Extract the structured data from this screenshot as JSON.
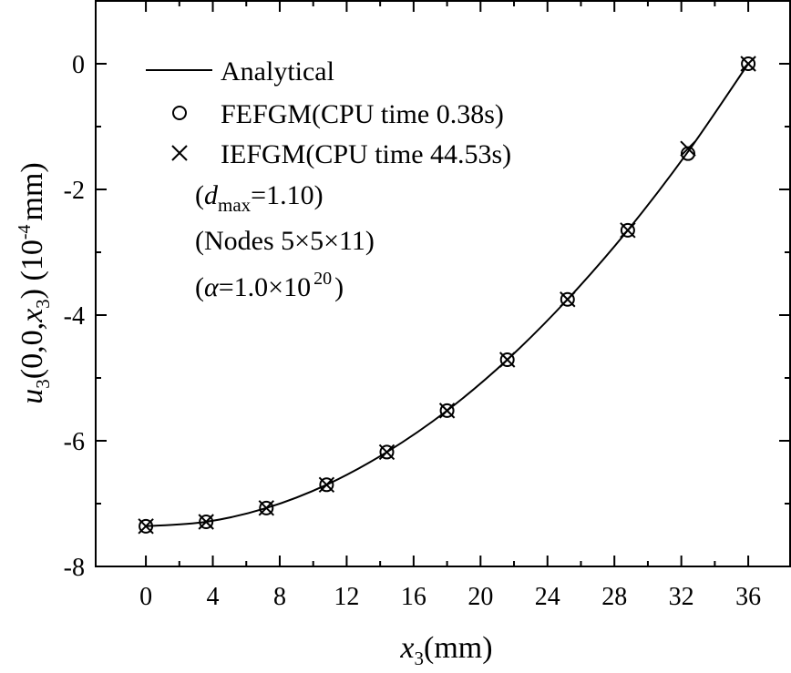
{
  "chart_data": {
    "type": "line",
    "title": "",
    "xlabel": {
      "var": "x",
      "sub": "3",
      "unit": "(mm)"
    },
    "ylabel": {
      "var": "u",
      "sub": "3",
      "arg1": "(0,0,",
      "argvar": "x",
      "argsub": "3",
      "arg2": ") (10",
      "exp": "-4",
      "unit": "mm)"
    },
    "xlim": [
      -3,
      38.5
    ],
    "ylim": [
      -8,
      1
    ],
    "xticks": [
      0,
      4,
      8,
      12,
      16,
      20,
      24,
      28,
      32,
      36
    ],
    "xtick_labels": [
      "0",
      "4",
      "8",
      "12",
      "16",
      "20",
      "24",
      "28",
      "32",
      "36"
    ],
    "yticks": [
      0,
      -2,
      -4,
      -6,
      -8
    ],
    "ytick_labels": [
      "0",
      "-2",
      "-4",
      "-6",
      "-8"
    ],
    "grid": false,
    "legend_position": "top-left",
    "series": [
      {
        "name": "Analytical",
        "style": "line",
        "x": [
          0,
          3.6,
          7.2,
          10.8,
          14.4,
          18,
          21.6,
          25.2,
          28.8,
          32.4,
          36
        ],
        "values": [
          -7.36,
          -7.29,
          -7.07,
          -6.7,
          -6.18,
          -5.52,
          -4.71,
          -3.75,
          -2.65,
          -1.4,
          0.0
        ]
      },
      {
        "name": "FEFGM(CPU time 0.38s)",
        "style": "circle",
        "x": [
          0,
          3.6,
          7.2,
          10.8,
          14.4,
          18,
          21.6,
          25.2,
          28.8,
          32.4,
          36
        ],
        "values": [
          -7.36,
          -7.29,
          -7.07,
          -6.7,
          -6.18,
          -5.52,
          -4.71,
          -3.75,
          -2.65,
          -1.43,
          0.0
        ]
      },
      {
        "name": "IEFGM(CPU time 44.53s)",
        "style": "cross",
        "x": [
          0,
          3.6,
          7.2,
          10.8,
          14.4,
          18,
          21.6,
          25.2,
          28.8,
          32.4,
          36
        ],
        "values": [
          -7.36,
          -7.29,
          -7.07,
          -6.7,
          -6.18,
          -5.52,
          -4.71,
          -3.75,
          -2.65,
          -1.35,
          0.0
        ]
      }
    ],
    "annotations": [
      {
        "kind": "dmax",
        "open": "(",
        "var": "d",
        "sub": "max",
        "rest": "=1.10)"
      },
      {
        "kind": "plain",
        "text": "(Nodes 5×5×11)"
      },
      {
        "kind": "alpha",
        "open": "(",
        "var": "α",
        "rest": "=1.0×10",
        "exp": "20",
        "close": ")"
      }
    ]
  }
}
